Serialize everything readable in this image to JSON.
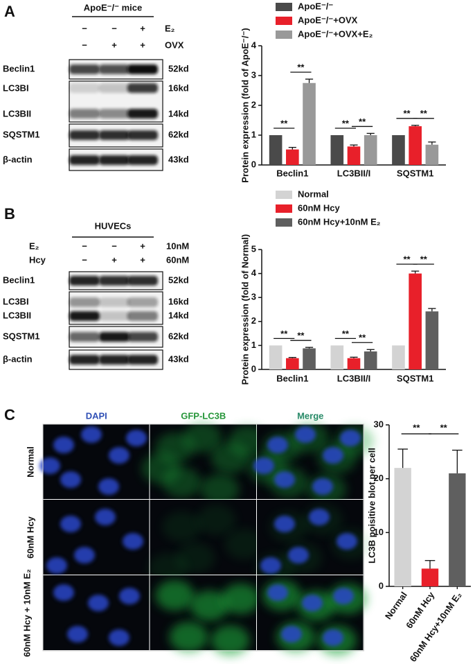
{
  "panels": [
    "A",
    "B",
    "C"
  ],
  "blots": [
    {
      "header": "ApoE⁻/⁻ mice",
      "conditions": [
        {
          "label": "E₂",
          "signs": [
            "−",
            "−",
            "+"
          ]
        },
        {
          "label": "OVX",
          "signs": [
            "−",
            "+",
            "+"
          ]
        }
      ],
      "rows": [
        {
          "label": "Beclin1",
          "kd": "52kd"
        },
        {
          "label": "LC3BI",
          "kd": "16kd"
        },
        {
          "label": "LC3BII",
          "kd": "14kd"
        },
        {
          "label": "SQSTM1",
          "kd": "62kd"
        },
        {
          "label": "β-actin",
          "kd": "43kd"
        }
      ]
    },
    {
      "header": "HUVECs",
      "conditions": [
        {
          "label": "E₂",
          "signs": [
            "−",
            "−",
            "+"
          ],
          "dose": "10nM"
        },
        {
          "label": "Hcy",
          "signs": [
            "−",
            "+",
            "+"
          ],
          "dose": "60nM"
        }
      ],
      "rows": [
        {
          "label": "Beclin1",
          "kd": "52kd"
        },
        {
          "label": "LC3BI",
          "kd": "16kd"
        },
        {
          "label": "LC3BII",
          "kd": "14kd"
        },
        {
          "label": "SQSTM1",
          "kd": "62kd"
        },
        {
          "label": "β-actin",
          "kd": "43kd"
        }
      ]
    }
  ],
  "microscopy": {
    "columns": [
      "DAPI",
      "GFP-LC3B",
      "Merge"
    ],
    "rows": [
      "Normal",
      "60nM Hcy",
      "60nM Hcy + 10nM E₂"
    ]
  },
  "chart_data": [
    {
      "type": "bar",
      "ylabel": "Protein expression (fold of ApoE⁻/⁻)",
      "categories": [
        "Beclin1",
        "LC3BII/I",
        "SQSTM1"
      ],
      "series": [
        {
          "name": "ApoE⁻/⁻",
          "color": "#4a4a4a",
          "values": [
            1,
            1,
            1
          ]
        },
        {
          "name": "ApoE⁻/⁻+OVX",
          "color": "#e8202a",
          "values": [
            0.52,
            0.62,
            1.3
          ],
          "errors": [
            0.07,
            0.05,
            0.03
          ]
        },
        {
          "name": "ApoE⁻/⁻+OVX+E₂",
          "color": "#999999",
          "values": [
            2.75,
            1.0,
            0.68
          ],
          "errors": [
            0.13,
            0.06,
            0.09
          ]
        }
      ],
      "significance": [
        {
          "label": "**",
          "category": 0,
          "series": [
            0,
            1
          ]
        },
        {
          "label": "**",
          "category": 0,
          "series": [
            1,
            2
          ]
        },
        {
          "label": "**",
          "category": 1,
          "series": [
            0,
            1
          ]
        },
        {
          "label": "**",
          "category": 1,
          "series": [
            1,
            2
          ]
        },
        {
          "label": "**",
          "category": 2,
          "series": [
            0,
            1
          ]
        },
        {
          "label": "**",
          "category": 2,
          "series": [
            1,
            2
          ]
        }
      ],
      "ylim": [
        0,
        4
      ],
      "yticks": [
        0,
        1,
        2,
        3,
        4
      ]
    },
    {
      "type": "bar",
      "ylabel": "Protein expression (fold of Normal)",
      "categories": [
        "Beclin1",
        "LC3BII/I",
        "SQSTM1"
      ],
      "series": [
        {
          "name": "Normal",
          "color": "#d3d3d3",
          "values": [
            1,
            1,
            1
          ]
        },
        {
          "name": "60nM Hcy",
          "color": "#e8202a",
          "values": [
            0.47,
            0.47,
            4.0
          ],
          "errors": [
            0.03,
            0.04,
            0.1
          ]
        },
        {
          "name": "60nM Hcy+10nM E₂",
          "color": "#5f5f5f",
          "values": [
            0.88,
            0.75,
            2.42
          ],
          "errors": [
            0.04,
            0.08,
            0.12
          ]
        }
      ],
      "significance": [
        {
          "label": "**",
          "category": 0,
          "series": [
            0,
            1
          ]
        },
        {
          "label": "**",
          "category": 0,
          "series": [
            1,
            2
          ]
        },
        {
          "label": "**",
          "category": 1,
          "series": [
            0,
            1
          ]
        },
        {
          "label": "**",
          "category": 1,
          "series": [
            1,
            2
          ]
        },
        {
          "label": "**",
          "category": 2,
          "series": [
            0,
            1
          ]
        },
        {
          "label": "**",
          "category": 2,
          "series": [
            1,
            2
          ]
        }
      ],
      "ylim": [
        0,
        5
      ],
      "yticks": [
        0,
        1,
        2,
        3,
        4,
        5
      ]
    },
    {
      "type": "bar",
      "ylabel": "LC3B poisitive blot per cell",
      "categories": [
        "Normal",
        "60nM Hcy",
        "60nM Hcy+10nM E₂"
      ],
      "values": [
        22,
        3.3,
        21
      ],
      "errors": [
        3.5,
        1.5,
        4.3
      ],
      "colors": [
        "#d3d3d3",
        "#e8202a",
        "#5f5f5f"
      ],
      "significance": [
        {
          "label": "**",
          "categories": [
            0,
            1
          ]
        },
        {
          "label": "**",
          "categories": [
            1,
            2
          ]
        }
      ],
      "ylim": [
        0,
        30
      ],
      "yticks": [
        0,
        10,
        20,
        30
      ]
    }
  ]
}
